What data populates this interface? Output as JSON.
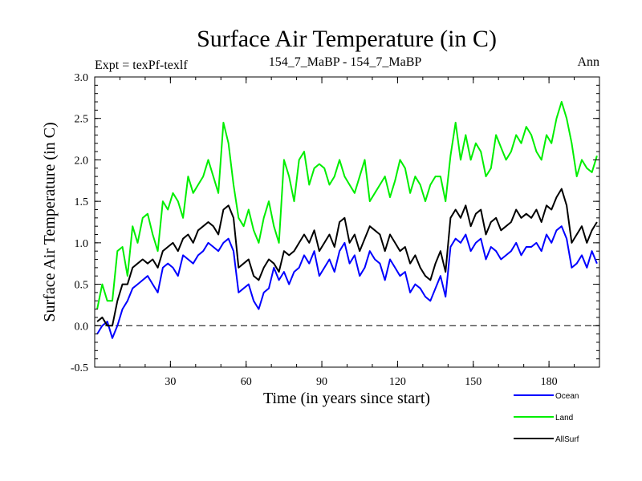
{
  "chart_data": {
    "type": "line",
    "title": "Surface Air Temperature (in C)",
    "subtitle_left": "Expt = texPf-texlf",
    "subtitle_center": "154_7_MaBP - 154_7_MaBP",
    "subtitle_right": "Ann",
    "xlabel": "Time (in years since start)",
    "ylabel": "Surface Air Temperature (in C)",
    "xlim": [
      0,
      200
    ],
    "ylim": [
      -0.5,
      3.0
    ],
    "xticks": [
      30,
      60,
      90,
      120,
      150,
      180
    ],
    "xtick_labels": [
      "30",
      "60",
      "90",
      "120",
      "150",
      "180"
    ],
    "yticks": [
      -0.5,
      0.0,
      0.5,
      1.0,
      1.5,
      2.0,
      2.5,
      3.0
    ],
    "ytick_labels": [
      "-0.5",
      "0.0",
      "0.5",
      "1.0",
      "1.5",
      "2.0",
      "2.5",
      "3.0"
    ],
    "reference_line": {
      "y": 0.0,
      "style": "dashed"
    },
    "x": [
      1,
      3,
      5,
      7,
      9,
      11,
      13,
      15,
      17,
      19,
      21,
      23,
      25,
      27,
      29,
      31,
      33,
      35,
      37,
      39,
      41,
      43,
      45,
      47,
      49,
      51,
      53,
      55,
      57,
      59,
      61,
      63,
      65,
      67,
      69,
      71,
      73,
      75,
      77,
      79,
      81,
      83,
      85,
      87,
      89,
      91,
      93,
      95,
      97,
      99,
      101,
      103,
      105,
      107,
      109,
      111,
      113,
      115,
      117,
      119,
      121,
      123,
      125,
      127,
      129,
      131,
      133,
      135,
      137,
      139,
      141,
      143,
      145,
      147,
      149,
      151,
      153,
      155,
      157,
      159,
      161,
      163,
      165,
      167,
      169,
      171,
      173,
      175,
      177,
      179,
      181,
      183,
      185,
      187,
      189,
      191,
      193,
      195,
      197,
      199
    ],
    "series": [
      {
        "name": "Ocean",
        "color": "#0000ff",
        "values": [
          -0.1,
          0.0,
          0.05,
          -0.15,
          0.0,
          0.2,
          0.3,
          0.45,
          0.5,
          0.55,
          0.6,
          0.5,
          0.4,
          0.7,
          0.75,
          0.7,
          0.6,
          0.85,
          0.8,
          0.75,
          0.85,
          0.9,
          1.0,
          0.95,
          0.9,
          1.0,
          1.05,
          0.9,
          0.4,
          0.45,
          0.5,
          0.3,
          0.2,
          0.4,
          0.45,
          0.7,
          0.55,
          0.65,
          0.5,
          0.65,
          0.7,
          0.85,
          0.75,
          0.9,
          0.6,
          0.7,
          0.8,
          0.65,
          0.9,
          1.0,
          0.75,
          0.85,
          0.6,
          0.7,
          0.9,
          0.8,
          0.75,
          0.55,
          0.8,
          0.7,
          0.6,
          0.65,
          0.4,
          0.5,
          0.45,
          0.35,
          0.3,
          0.45,
          0.6,
          0.35,
          0.95,
          1.05,
          1.0,
          1.1,
          0.9,
          1.0,
          1.05,
          0.8,
          0.95,
          0.9,
          0.8,
          0.85,
          0.9,
          1.0,
          0.85,
          0.95,
          0.95,
          1.0,
          0.9,
          1.1,
          1.0,
          1.15,
          1.2,
          1.05,
          0.7,
          0.75,
          0.85,
          0.7,
          0.9,
          0.75
        ]
      },
      {
        "name": "Land",
        "color": "#00ee00",
        "values": [
          0.2,
          0.5,
          0.3,
          0.3,
          0.9,
          0.95,
          0.6,
          1.2,
          1.0,
          1.3,
          1.35,
          1.1,
          0.9,
          1.5,
          1.4,
          1.6,
          1.5,
          1.3,
          1.8,
          1.6,
          1.7,
          1.8,
          2.0,
          1.8,
          1.6,
          2.45,
          2.2,
          1.7,
          1.3,
          1.2,
          1.4,
          1.15,
          1.0,
          1.3,
          1.5,
          1.2,
          1.0,
          2.0,
          1.8,
          1.5,
          2.0,
          2.1,
          1.7,
          1.9,
          1.95,
          1.9,
          1.7,
          1.8,
          2.0,
          1.8,
          1.7,
          1.6,
          1.8,
          2.0,
          1.5,
          1.6,
          1.7,
          1.8,
          1.55,
          1.75,
          2.0,
          1.9,
          1.6,
          1.8,
          1.7,
          1.5,
          1.7,
          1.8,
          1.8,
          1.5,
          2.05,
          2.45,
          2.0,
          2.3,
          2.0,
          2.2,
          2.1,
          1.8,
          1.9,
          2.3,
          2.15,
          2.0,
          2.1,
          2.3,
          2.2,
          2.4,
          2.3,
          2.1,
          2.0,
          2.3,
          2.2,
          2.5,
          2.7,
          2.5,
          2.2,
          1.8,
          2.0,
          1.9,
          1.85,
          2.05
        ]
      },
      {
        "name": "AllSurf",
        "color": "#000000",
        "values": [
          0.05,
          0.1,
          0.0,
          0.0,
          0.3,
          0.5,
          0.5,
          0.7,
          0.75,
          0.8,
          0.75,
          0.8,
          0.7,
          0.9,
          0.95,
          1.0,
          0.9,
          1.05,
          1.1,
          1.0,
          1.15,
          1.2,
          1.25,
          1.2,
          1.1,
          1.4,
          1.45,
          1.3,
          0.7,
          0.75,
          0.8,
          0.6,
          0.55,
          0.7,
          0.8,
          0.75,
          0.65,
          0.9,
          0.85,
          0.9,
          1.0,
          1.1,
          1.0,
          1.15,
          0.9,
          1.0,
          1.1,
          0.95,
          1.25,
          1.3,
          1.0,
          1.1,
          0.9,
          1.05,
          1.2,
          1.15,
          1.1,
          0.9,
          1.1,
          1.0,
          0.9,
          0.95,
          0.75,
          0.85,
          0.7,
          0.6,
          0.55,
          0.75,
          0.9,
          0.65,
          1.3,
          1.4,
          1.3,
          1.45,
          1.2,
          1.35,
          1.4,
          1.1,
          1.25,
          1.3,
          1.15,
          1.2,
          1.25,
          1.4,
          1.3,
          1.35,
          1.3,
          1.4,
          1.25,
          1.45,
          1.4,
          1.55,
          1.65,
          1.45,
          1.0,
          1.1,
          1.2,
          1.0,
          1.15,
          1.25
        ]
      }
    ]
  }
}
